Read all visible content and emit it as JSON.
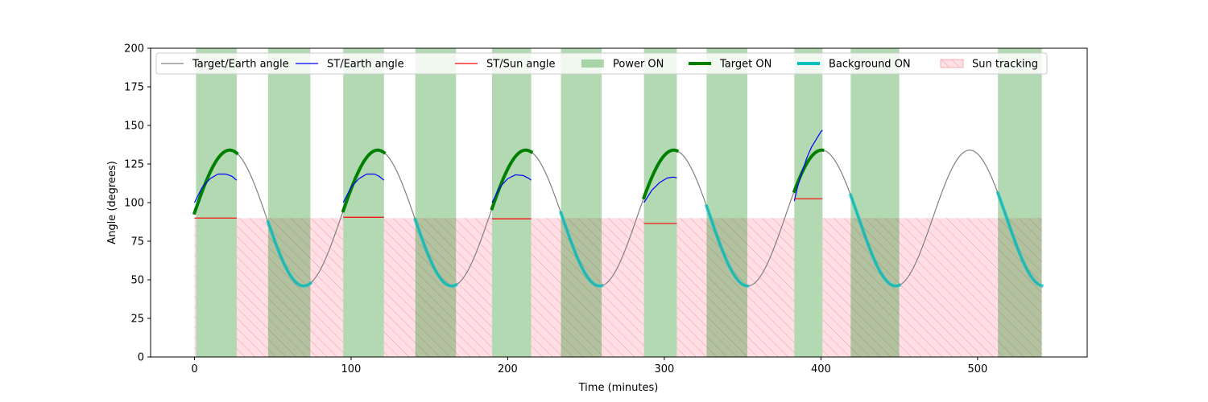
{
  "chart_data": {
    "type": "line",
    "xlabel": "Time (minutes)",
    "ylabel": "Angle (degrees)",
    "xlim": [
      -28,
      570
    ],
    "ylim": [
      0,
      200
    ],
    "x_ticks": [
      0,
      100,
      200,
      300,
      400,
      500
    ],
    "y_ticks": [
      0,
      25,
      50,
      75,
      100,
      125,
      150,
      175,
      200
    ],
    "legend_position": "top",
    "grid": false,
    "colors": {
      "target_earth": "#808080",
      "st_earth": "#0000ff",
      "st_sun": "#ff0000",
      "power_on": "#008000",
      "target_on": "#008000",
      "background_on": "#00bfbf",
      "sun_tracking": "#ff0000"
    },
    "legend": [
      {
        "key": "target_earth",
        "label": "Target/Earth angle",
        "style": "thin-line"
      },
      {
        "key": "st_earth",
        "label": "ST/Earth angle",
        "style": "thin-line"
      },
      {
        "key": "st_sun",
        "label": "ST/Sun angle",
        "style": "thin-line"
      },
      {
        "key": "power_on",
        "label": "Power ON",
        "style": "patch"
      },
      {
        "key": "target_on",
        "label": "Target ON",
        "style": "thick-line"
      },
      {
        "key": "background_on",
        "label": "Background ON",
        "style": "thick-line"
      },
      {
        "key": "sun_tracking",
        "label": "Sun tracking",
        "style": "hatch-patch"
      }
    ],
    "target_earth_angle": {
      "name": "Target/Earth angle",
      "mean": 90,
      "amplitude": 44,
      "period": 94.5,
      "peak_times": [
        22.5,
        117,
        211.5,
        306,
        400.5,
        495
      ],
      "x_range": [
        0,
        540
      ]
    },
    "power_on_intervals": [
      [
        1,
        27
      ],
      [
        47,
        74
      ],
      [
        95,
        121
      ],
      [
        141,
        167
      ],
      [
        190,
        215
      ],
      [
        234,
        260
      ],
      [
        287,
        308
      ],
      [
        327,
        353
      ],
      [
        383,
        401
      ],
      [
        419,
        450
      ],
      [
        513,
        541
      ]
    ],
    "target_on_intervals": [
      [
        0,
        27
      ],
      [
        95,
        121
      ],
      [
        190,
        215
      ],
      [
        287,
        308
      ],
      [
        383,
        401
      ]
    ],
    "background_on_intervals": [
      [
        47,
        74
      ],
      [
        141,
        167
      ],
      [
        234,
        260
      ],
      [
        327,
        353
      ],
      [
        419,
        450
      ],
      [
        513,
        541
      ]
    ],
    "sun_tracking_intervals": [
      [
        0,
        1
      ],
      [
        27,
        95
      ],
      [
        121,
        190
      ],
      [
        215,
        287
      ],
      [
        308,
        383
      ],
      [
        401,
        541
      ]
    ],
    "sun_tracking_level": 90,
    "st_earth_segments": [
      {
        "x": [
          0,
          5,
          10,
          15,
          20,
          24,
          27
        ],
        "y": [
          100,
          110,
          115.5,
          118.5,
          118.5,
          117,
          114.5
        ]
      },
      {
        "x": [
          95,
          100,
          105,
          110,
          115,
          118,
          121
        ],
        "y": [
          100,
          110,
          115.5,
          118.5,
          118.5,
          117,
          114.5
        ]
      },
      {
        "x": [
          190,
          195,
          200,
          205,
          210,
          213,
          215
        ],
        "y": [
          100,
          110,
          115.5,
          118,
          117.5,
          116,
          114.5
        ]
      },
      {
        "x": [
          287,
          292,
          297,
          302,
          306,
          308
        ],
        "y": [
          100,
          108,
          113,
          116,
          116.5,
          116
        ]
      },
      {
        "x": [
          383,
          385,
          388,
          391,
          394,
          397,
          400,
          401
        ],
        "y": [
          101,
          110,
          120,
          129,
          136,
          141,
          146,
          147
        ]
      }
    ],
    "st_sun_segments": [
      {
        "x": [
          0,
          27
        ],
        "y": [
          90,
          90
        ]
      },
      {
        "x": [
          95,
          121
        ],
        "y": [
          90.5,
          90.5
        ]
      },
      {
        "x": [
          190,
          215
        ],
        "y": [
          89.5,
          89.5
        ]
      },
      {
        "x": [
          287,
          308
        ],
        "y": [
          86.5,
          86.5
        ]
      },
      {
        "x": [
          383,
          401
        ],
        "y": [
          102.5,
          102.5
        ]
      }
    ]
  }
}
